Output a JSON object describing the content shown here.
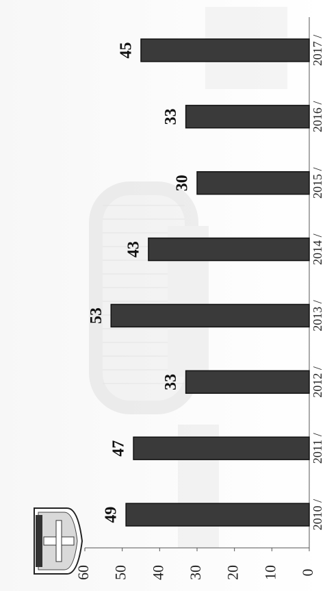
{
  "chart_data": {
    "type": "bar",
    "orientation": "rotated-90-ccw",
    "categories": [
      "2010 / ",
      "2011 / ",
      "2012 / ",
      "2013 / ",
      "2014 / ",
      "2015 / ",
      "2016 / ",
      "2017 / "
    ],
    "values": [
      49,
      47,
      33,
      53,
      43,
      30,
      33,
      45
    ],
    "data_labels": [
      "49",
      "47",
      "33",
      "53",
      "43",
      "30",
      "33",
      "45"
    ],
    "ylim": [
      0,
      60
    ],
    "yticks": [
      "0",
      "10",
      "20",
      "30",
      "40",
      "50",
      "60"
    ],
    "grid": false,
    "legend": "none",
    "bar_color": "#3a3a3a",
    "background_image": "faded building illustration",
    "logo": "police-badge-icon"
  }
}
